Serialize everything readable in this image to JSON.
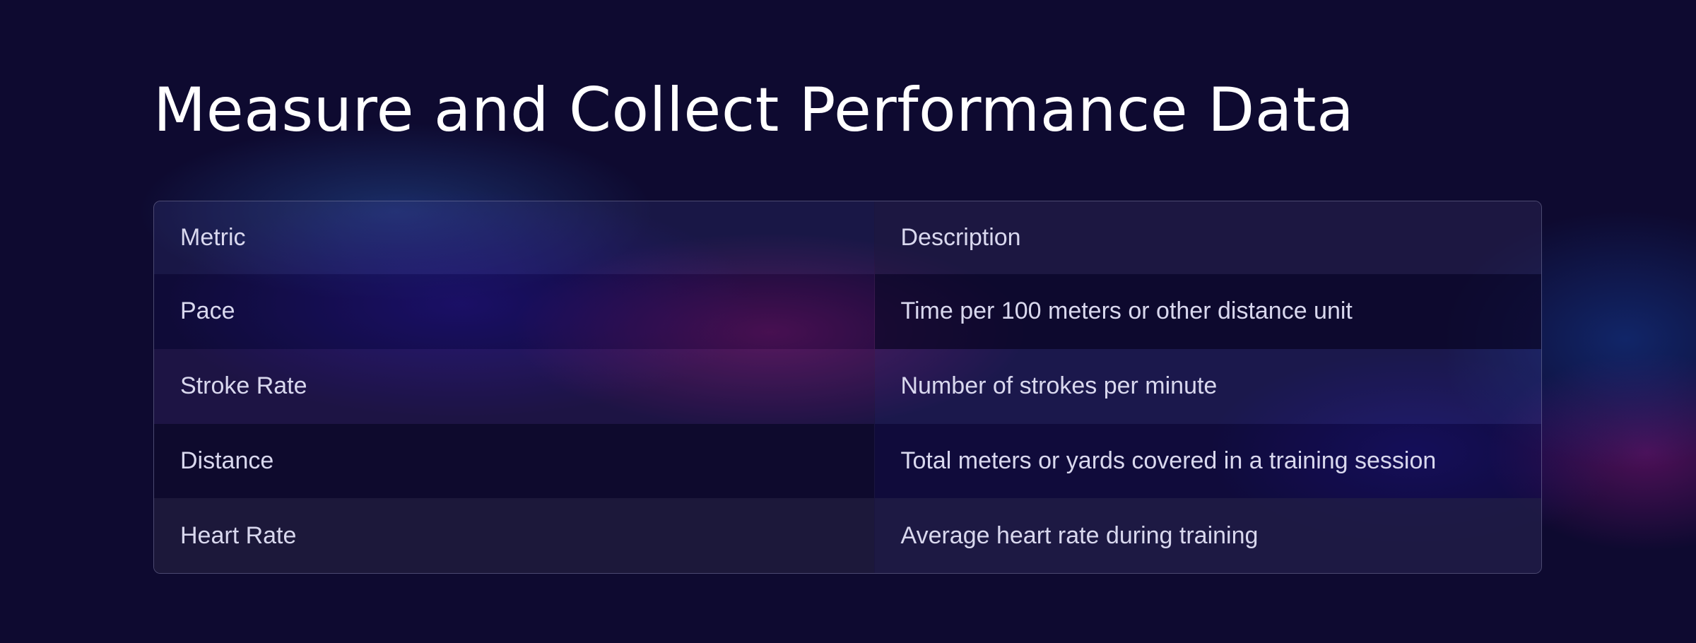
{
  "slide": {
    "title": "Measure and Collect Performance Data"
  },
  "table": {
    "headers": [
      "Metric",
      "Description"
    ],
    "rows": [
      {
        "metric": "Pace",
        "description": "Time per 100 meters or other distance unit"
      },
      {
        "metric": "Stroke Rate",
        "description": "Number of strokes per minute"
      },
      {
        "metric": "Distance",
        "description": "Total meters or yards covered in a training session"
      },
      {
        "metric": "Heart Rate",
        "description": "Average heart rate during training"
      }
    ]
  },
  "colors": {
    "background": "#0e0a30",
    "title_text": "#ffffff",
    "table_text": "#d9d8ee",
    "table_border": "#96969e"
  }
}
